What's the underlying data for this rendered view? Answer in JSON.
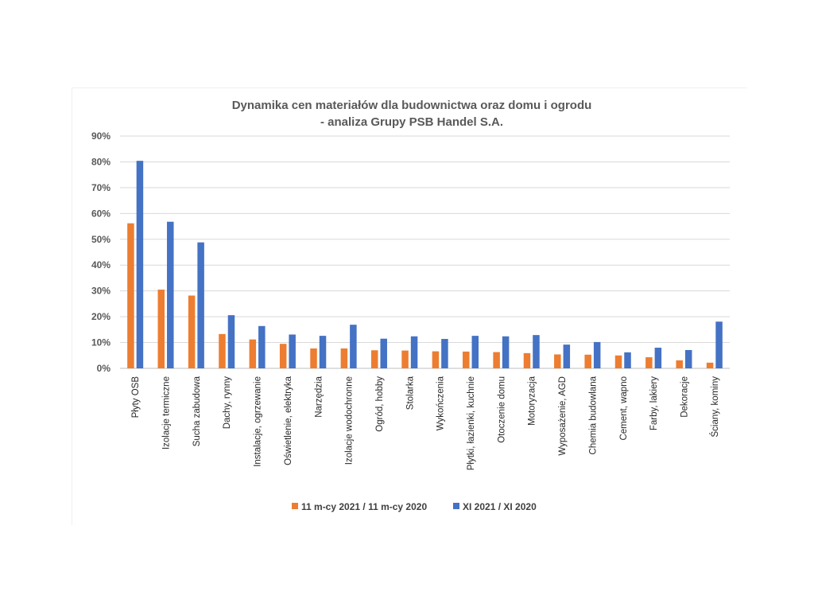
{
  "chart_data": {
    "type": "bar",
    "title": [
      "Dynamika cen materiałów dla budownictwa oraz domu i ogrodu",
      "- analiza Grupy PSB Handel S.A."
    ],
    "xlabel": "",
    "ylabel": "",
    "ylim": [
      0,
      90
    ],
    "yticks": [
      0,
      10,
      20,
      30,
      40,
      50,
      60,
      70,
      80,
      90
    ],
    "ytick_labels": [
      "0%",
      "10%",
      "20%",
      "30%",
      "40%",
      "50%",
      "60%",
      "70%",
      "80%",
      "90%"
    ],
    "grid": true,
    "legend_position": "bottom",
    "categories": [
      "Płyty OSB",
      "Izolacje termiczne",
      "Sucha zabudowa",
      "Dachy, rynny",
      "Instalacje, ogrzewanie",
      "Oświetlenie, elektryka",
      "Narzędzia",
      "Izolacje wodochronne",
      "Ogród, hobby",
      "Stolarka",
      "Wykończenia",
      "Płytki, łazienki, kuchnie",
      "Otoczenie domu",
      "Motoryzacja",
      "Wyposażenie, AGD",
      "Chemia budowlana",
      "Cement, wapno",
      "Farby, lakiery",
      "Dekoracje",
      "Ściany, kominy"
    ],
    "series": [
      {
        "name": "11 m-cy 2021 / 11 m-cy 2020",
        "color": "#ED7D31",
        "values": [
          56.2,
          30.5,
          28.2,
          13.3,
          11.2,
          9.5,
          7.7,
          7.7,
          7.0,
          6.9,
          6.6,
          6.5,
          6.3,
          5.9,
          5.4,
          5.3,
          5.0,
          4.3,
          3.1,
          2.2
        ]
      },
      {
        "name": "XI 2021 / XI 2020",
        "color": "#4472C4",
        "values": [
          80.4,
          56.8,
          48.8,
          20.6,
          16.4,
          13.1,
          12.6,
          16.9,
          11.5,
          12.4,
          11.4,
          12.6,
          12.4,
          12.9,
          9.2,
          10.2,
          6.2,
          8.0,
          7.1,
          18.1
        ]
      }
    ]
  }
}
